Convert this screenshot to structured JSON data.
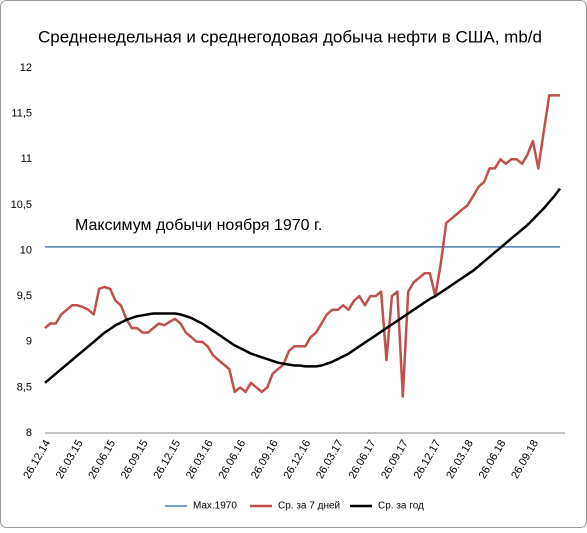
{
  "chart_data": {
    "type": "line",
    "title": "Средненедельная и среднегодовая добыча нефти в США, mb/d",
    "annotation": "Максимум добычи ноября 1970 г.",
    "categories": [
      "26.12.14",
      null,
      null,
      null,
      null,
      null,
      "26.03.15",
      null,
      null,
      null,
      null,
      null,
      "26.06.15",
      null,
      null,
      null,
      null,
      null,
      "26.09.15",
      null,
      null,
      null,
      null,
      null,
      "26.12.15",
      null,
      null,
      null,
      null,
      null,
      "26.03.16",
      null,
      null,
      null,
      null,
      null,
      "26.06.16",
      null,
      null,
      null,
      null,
      null,
      "26.09.16",
      null,
      null,
      null,
      null,
      null,
      "26.12.16",
      null,
      null,
      null,
      null,
      null,
      "26.03.17",
      null,
      null,
      null,
      null,
      null,
      "26.06.17",
      null,
      null,
      null,
      null,
      null,
      "26.09.17",
      null,
      null,
      null,
      null,
      null,
      "26.12.17",
      null,
      null,
      null,
      null,
      null,
      "26.03.18",
      null,
      null,
      null,
      null,
      null,
      "26.06.18",
      null,
      null,
      null,
      null,
      null,
      "26.09.18",
      null,
      null,
      null,
      null,
      null
    ],
    "series": [
      {
        "name": "Max.1970",
        "color": "#4a7ebb",
        "values": [
          10.04,
          10.04,
          10.04,
          10.04,
          10.04,
          10.04,
          10.04,
          10.04,
          10.04,
          10.04,
          10.04,
          10.04,
          10.04,
          10.04,
          10.04,
          10.04,
          10.04,
          10.04,
          10.04,
          10.04,
          10.04,
          10.04,
          10.04,
          10.04,
          10.04,
          10.04,
          10.04,
          10.04,
          10.04,
          10.04,
          10.04,
          10.04,
          10.04,
          10.04,
          10.04,
          10.04,
          10.04,
          10.04,
          10.04,
          10.04,
          10.04,
          10.04,
          10.04,
          10.04,
          10.04,
          10.04,
          10.04,
          10.04,
          10.04,
          10.04,
          10.04,
          10.04,
          10.04,
          10.04,
          10.04,
          10.04,
          10.04,
          10.04,
          10.04,
          10.04,
          10.04,
          10.04,
          10.04,
          10.04,
          10.04,
          10.04,
          10.04,
          10.04,
          10.04,
          10.04,
          10.04,
          10.04,
          10.04,
          10.04,
          10.04,
          10.04,
          10.04,
          10.04,
          10.04,
          10.04,
          10.04,
          10.04,
          10.04,
          10.04,
          10.04,
          10.04,
          10.04,
          10.04,
          10.04,
          10.04,
          10.04,
          10.04,
          10.04,
          10.04,
          10.04,
          10.04
        ]
      },
      {
        "name": "Ср. за 7 дней",
        "color": "#c0504d",
        "values": [
          9.15,
          9.2,
          9.2,
          9.3,
          9.35,
          9.4,
          9.4,
          9.38,
          9.35,
          9.3,
          9.58,
          9.6,
          9.58,
          9.45,
          9.4,
          9.25,
          9.15,
          9.15,
          9.1,
          9.1,
          9.15,
          9.2,
          9.18,
          9.22,
          9.25,
          9.2,
          9.1,
          9.05,
          9.0,
          9.0,
          8.95,
          8.85,
          8.8,
          8.75,
          8.7,
          8.45,
          8.5,
          8.45,
          8.55,
          8.5,
          8.45,
          8.5,
          8.65,
          8.7,
          8.75,
          8.9,
          8.95,
          8.95,
          8.95,
          9.05,
          9.1,
          9.2,
          9.3,
          9.35,
          9.35,
          9.4,
          9.35,
          9.45,
          9.5,
          9.4,
          9.5,
          9.5,
          9.55,
          8.8,
          9.5,
          9.55,
          8.4,
          9.55,
          9.65,
          9.7,
          9.75,
          9.75,
          9.5,
          9.85,
          10.3,
          10.35,
          10.4,
          10.45,
          10.5,
          10.6,
          10.7,
          10.75,
          10.9,
          10.9,
          11.0,
          10.95,
          11.0,
          11.0,
          10.95,
          11.05,
          11.2,
          10.9,
          11.3,
          11.7,
          11.7,
          11.7
        ]
      },
      {
        "name": "Ср. за год",
        "color": "#000000",
        "values": [
          8.55,
          8.6,
          8.65,
          8.7,
          8.75,
          8.8,
          8.85,
          8.9,
          8.95,
          9.0,
          9.05,
          9.1,
          9.14,
          9.18,
          9.21,
          9.24,
          9.26,
          9.28,
          9.29,
          9.3,
          9.31,
          9.31,
          9.31,
          9.31,
          9.31,
          9.3,
          9.28,
          9.26,
          9.23,
          9.2,
          9.16,
          9.12,
          9.08,
          9.04,
          9.0,
          8.96,
          8.93,
          8.9,
          8.87,
          8.85,
          8.83,
          8.81,
          8.79,
          8.77,
          8.76,
          8.75,
          8.74,
          8.74,
          8.73,
          8.73,
          8.73,
          8.74,
          8.76,
          8.78,
          8.81,
          8.84,
          8.87,
          8.91,
          8.95,
          8.99,
          9.03,
          9.07,
          9.11,
          9.15,
          9.19,
          9.23,
          9.27,
          9.31,
          9.35,
          9.39,
          9.43,
          9.47,
          9.5,
          9.54,
          9.58,
          9.62,
          9.66,
          9.7,
          9.74,
          9.78,
          9.83,
          9.88,
          9.93,
          9.98,
          10.03,
          10.08,
          10.13,
          10.18,
          10.23,
          10.28,
          10.34,
          10.4,
          10.46,
          10.53,
          10.6,
          10.68
        ]
      }
    ],
    "ylim": [
      8,
      12
    ],
    "yticks": [
      8,
      {
        "value": 8.5,
        "label": "8,5"
      },
      9,
      {
        "value": 9.5,
        "label": "9,5"
      },
      10,
      {
        "value": 10.5,
        "label": "10,5"
      },
      11,
      {
        "value": 11.5,
        "label": "11,5"
      },
      12
    ],
    "grid": false,
    "legend": "bottom"
  }
}
